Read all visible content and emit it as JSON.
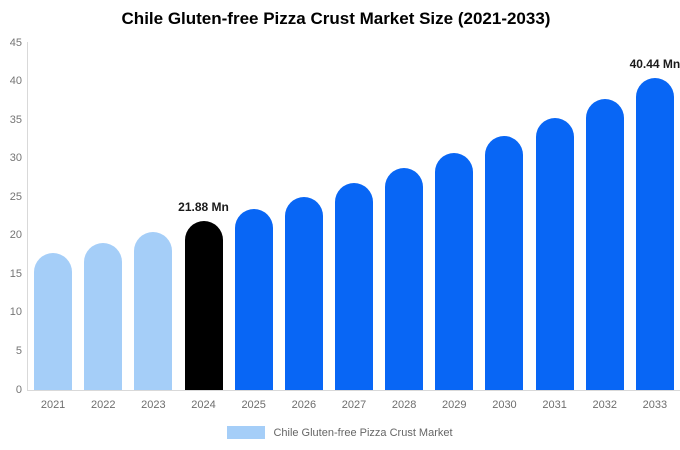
{
  "title": "Chile Gluten-free Pizza Crust Market Size (2021-2033)",
  "legend": {
    "label": "Chile Gluten-free Pizza Crust Market",
    "swatch_color": "#A5CEF8"
  },
  "colors": {
    "past_bar": "#A5CEF8",
    "current_bar": "#000000",
    "forecast_bar": "#0866F5",
    "axis_line": "#D9D9D9",
    "axis_text": "#757575",
    "x_axis_text": "#6E6E6E",
    "value_label_text": "#1B1B1B",
    "title_text": "#000000",
    "legend_text": "#666666"
  },
  "chart_data": {
    "type": "bar",
    "title": "Chile Gluten-free Pizza Crust Market Size (2021-2033)",
    "xlabel": "",
    "ylabel": "",
    "unit": "Mn",
    "ylim": [
      0,
      45
    ],
    "yticks": [
      0,
      5,
      10,
      15,
      20,
      25,
      30,
      35,
      40,
      45
    ],
    "grid": false,
    "legend_position": "bottom",
    "categories": [
      "2021",
      "2022",
      "2023",
      "2024",
      "2025",
      "2026",
      "2027",
      "2028",
      "2029",
      "2030",
      "2031",
      "2032",
      "2033"
    ],
    "values": [
      17.82,
      19.08,
      20.43,
      21.88,
      23.42,
      25.07,
      26.84,
      28.74,
      30.77,
      32.94,
      35.27,
      37.76,
      40.44
    ],
    "bar_colors": [
      "#A5CEF8",
      "#A5CEF8",
      "#A5CEF8",
      "#000000",
      "#0866F5",
      "#0866F5",
      "#0866F5",
      "#0866F5",
      "#0866F5",
      "#0866F5",
      "#0866F5",
      "#0866F5",
      "#0866F5"
    ],
    "annotations": [
      {
        "category": "2024",
        "text": "21.88 Mn"
      },
      {
        "category": "2033",
        "text": "40.44 Mn"
      }
    ]
  }
}
